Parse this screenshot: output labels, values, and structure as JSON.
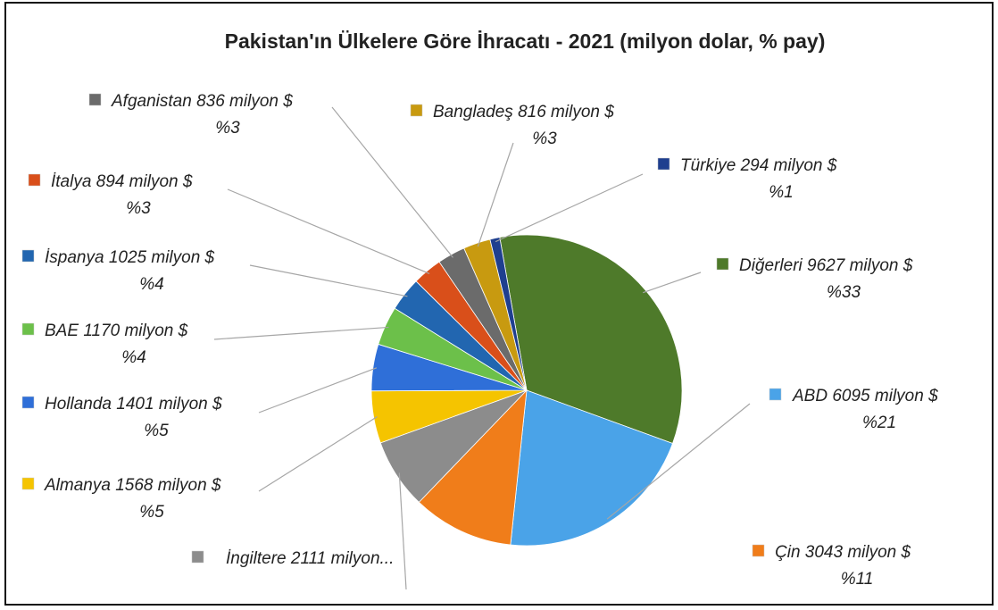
{
  "chart_data": {
    "type": "pie",
    "title": "Pakistan'ın Ülkelere Göre İhracatı - 2021 (milyon dolar, % pay)",
    "categories": [
      "Diğerleri",
      "ABD",
      "Çin",
      "İngiltere",
      "Almanya",
      "Hollanda",
      "BAE",
      "İspanya",
      "İtalya",
      "Afganistan",
      "Bangladeş",
      "Türkiye"
    ],
    "values": [
      9627,
      6095,
      3043,
      2111,
      1568,
      1401,
      1170,
      1025,
      894,
      836,
      816,
      294
    ],
    "value_labels": [
      "9627 milyon $",
      "6095 milyon $",
      "3043 milyon $",
      "2111 milyon...",
      "1568 milyon $",
      "1401 milyon $",
      "1170 milyon $",
      "1025 milyon $",
      "894 milyon $",
      "836 milyon $",
      "816 milyon $",
      "294 milyon $"
    ],
    "shares": [
      33,
      21,
      11,
      null,
      5,
      5,
      4,
      4,
      3,
      3,
      3,
      1
    ],
    "share_labels": [
      "%33",
      "%21",
      "%11",
      null,
      "%5",
      "%5",
      "%4",
      "%4",
      "%3",
      "%3",
      "%3",
      "%1"
    ],
    "colors": [
      "#4e7a2a",
      "#4aa3e8",
      "#f07d1a",
      "#8c8c8c",
      "#f5c400",
      "#2f6fd8",
      "#6cc04a",
      "#2266b0",
      "#d94f1a",
      "#6b6b6b",
      "#c89a10",
      "#1f3f8f"
    ]
  }
}
